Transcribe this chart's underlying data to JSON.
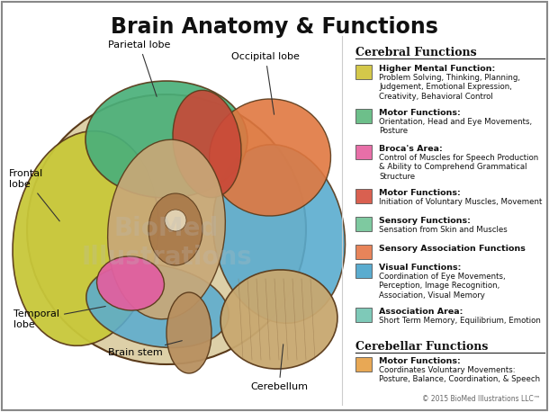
{
  "title": "Brain Anatomy & Functions",
  "title_fontsize": 17,
  "title_fontweight": "bold",
  "background_color": "#ffffff",
  "border_color": "#888888",
  "copyright": "© 2015 BioMed Illustrations LLC™",
  "cerebral_header": "Cerebral Functions",
  "cerebellar_header": "Cerebellar Functions",
  "legend_items": [
    {
      "color": "#d4c84a",
      "label_bold": "Higher Mental Function:",
      "label_text": "Problem Solving, Thinking, Planning,\nJudgement, Emotional Expression,\nCreativity, Behavioral Control"
    },
    {
      "color": "#6dbf8a",
      "label_bold": "Motor Functions:",
      "label_text": "Orientation, Head and Eye Movements,\nPosture"
    },
    {
      "color": "#e86fa8",
      "label_bold": "Broca's Area:",
      "label_text": "Control of Muscles for Speech Production\n& Ability to Comprehend Grammatical\nStructure"
    },
    {
      "color": "#d96050",
      "label_bold": "Motor Functions:",
      "label_text": "Initiation of Voluntary Muscles, Movement"
    },
    {
      "color": "#7ec9a0",
      "label_bold": "Sensory Functions:",
      "label_text": "Sensation from Skin and Muscles"
    },
    {
      "color": "#e8845a",
      "label_bold": "Sensory Association Functions",
      "label_text": ""
    },
    {
      "color": "#5aaccf",
      "label_bold": "Visual Functions:",
      "label_text": "Coordination of Eye Movements,\nPerception, Image Recognition,\nAssociation, Visual Memory"
    },
    {
      "color": "#7ec9b8",
      "label_bold": "Association Area:",
      "label_text": "Short Term Memory, Equilibrium, Emotion"
    }
  ],
  "cerebellar_items": [
    {
      "color": "#e8a855",
      "label_bold": "Motor Functions:",
      "label_text": "Coordinates Voluntary Movements:\nPosture, Balance, Coordination, & Speech"
    }
  ],
  "brain_bg_color": "#d4c098",
  "frontal_color": "#c8c83a",
  "parietal_color": "#4ab07a",
  "motor_strip_color": "#c84838",
  "occipital_color": "#e07840",
  "occipital_back_color": "#5aaccf",
  "temporal_color": "#5aaccf",
  "brocas_color": "#e060a0",
  "inner_color": "#c8a878",
  "cerebellum_color": "#c8a870",
  "brainstem_color": "#9a7858",
  "outline_color": "#5a3a1a",
  "watermark_color": "#cccccc"
}
